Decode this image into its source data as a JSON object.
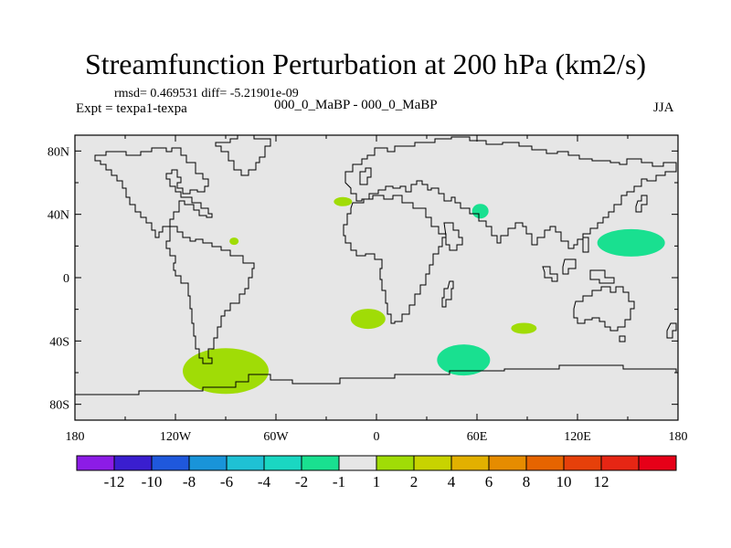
{
  "title": "Streamfunction Perturbation at 200 hPa (km2/s)",
  "stats": "rmsd= 0.469531  diff= -5.21901e-09",
  "left_label": "Expt = texpa1-texpa",
  "center_label": "000_0_MaBP - 000_0_MaBP",
  "right_label": "JJA",
  "lat_labels": [
    "80N",
    "40N",
    "0",
    "40S",
    "80S"
  ],
  "lon_labels": [
    "180",
    "120W",
    "60W",
    "0",
    "60E",
    "120E",
    "180"
  ],
  "colorbar": {
    "colors": [
      "#8c1ce6",
      "#3a1ecf",
      "#1f58dc",
      "#1994d9",
      "#1fc1d4",
      "#1ad7c2",
      "#19e090",
      "#e6e6e6",
      "#a0dc06",
      "#c8d300",
      "#e2b000",
      "#e68c00",
      "#e66400",
      "#e6400a",
      "#e62614",
      "#e60018"
    ],
    "labels": [
      "-12",
      "-10",
      "-8",
      "-6",
      "-4",
      "-2",
      "-1",
      "1",
      "2",
      "4",
      "6",
      "8",
      "10",
      "12"
    ]
  },
  "map_data": {
    "projection": "cylindrical equidistant",
    "lon_range": [
      -180,
      180
    ],
    "lat_range": [
      -90,
      90
    ],
    "lat_ticks": [
      80,
      40,
      0,
      -40,
      -80
    ],
    "lon_ticks": [
      -180,
      -120,
      -60,
      0,
      60,
      120,
      180
    ],
    "background_color": "#e6e6e6",
    "anomalies": [
      {
        "name": "n-atlantic-positive",
        "lon": -20,
        "lat": 48,
        "value": 2,
        "color": "#a0dc06"
      },
      {
        "name": "gulf-positive",
        "lon": -85,
        "lat": 23,
        "value": 2,
        "color": "#a0dc06"
      },
      {
        "name": "s-atlantic-positive",
        "lon": -5,
        "lat": -26,
        "value": 2,
        "color": "#a0dc06"
      },
      {
        "name": "s-pacific-positive",
        "lon": -90,
        "lat": -59,
        "value": 2,
        "color": "#a0dc06"
      },
      {
        "name": "indian-ocean-positive",
        "lon": 88,
        "lat": -32,
        "value": 2,
        "color": "#a0dc06"
      },
      {
        "name": "middle-east-negative",
        "lon": 62,
        "lat": 42,
        "value": -1,
        "color": "#19e090"
      },
      {
        "name": "n-pacific-negative",
        "lon": 152,
        "lat": 22,
        "value": -1,
        "color": "#19e090"
      },
      {
        "name": "s-indian-negative",
        "lon": 52,
        "lat": -52,
        "value": -1,
        "color": "#19e090"
      }
    ]
  }
}
